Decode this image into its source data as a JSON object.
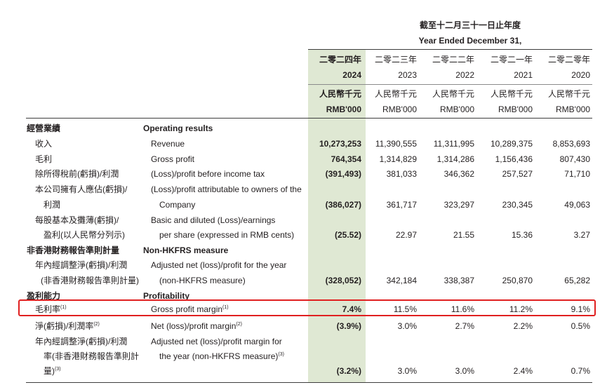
{
  "header": {
    "zh": "截至十二月三十一日止年度",
    "en": "Year Ended December 31,"
  },
  "columns": [
    {
      "zh_year": "二零二四年",
      "year": "2024",
      "unit_zh": "人民幣千元",
      "unit_en": "RMB'000"
    },
    {
      "zh_year": "二零二三年",
      "year": "2023",
      "unit_zh": "人民幣千元",
      "unit_en": "RMB'000"
    },
    {
      "zh_year": "二零二二年",
      "year": "2022",
      "unit_zh": "人民幣千元",
      "unit_en": "RMB'000"
    },
    {
      "zh_year": "二零二一年",
      "year": "2021",
      "unit_zh": "人民幣千元",
      "unit_en": "RMB'000"
    },
    {
      "zh_year": "二零二零年",
      "year": "2020",
      "unit_zh": "人民幣千元",
      "unit_en": "RMB'000"
    }
  ],
  "sections": {
    "operating": {
      "zh": "經營業績",
      "en": "Operating results"
    },
    "nonhkfrs": {
      "zh": "非香港財務報告準則計量",
      "en": "Non-HKFRS measure"
    },
    "profitability": {
      "zh": "盈利能力",
      "en": "Profitability"
    }
  },
  "rows": {
    "revenue": {
      "zh": "收入",
      "en": "Revenue",
      "values": [
        "10,273,253",
        "11,390,555",
        "11,311,995",
        "10,289,375",
        "8,853,693"
      ]
    },
    "gross_profit": {
      "zh": "毛利",
      "en": "Gross profit",
      "values": [
        "764,354",
        "1,314,829",
        "1,314,286",
        "1,156,436",
        "807,430"
      ]
    },
    "pbt": {
      "zh": "除所得稅前(虧損)/利潤",
      "en": "(Loss)/profit before income tax",
      "values": [
        "(391,493)",
        "381,033",
        "346,362",
        "257,527",
        "71,710"
      ]
    },
    "attributable": {
      "zh1": "本公司擁有人應佔(虧損)/",
      "zh2": "利潤",
      "en1": "(Loss)/profit attributable to owners of the",
      "en2": "Company",
      "values": [
        "(386,027)",
        "361,717",
        "323,297",
        "230,345",
        "49,063"
      ]
    },
    "eps": {
      "zh1": "每股基本及攤薄(虧損)/",
      "zh2": "盈利(以人民幣分列示)",
      "en1": "Basic and diluted (Loss)/earnings",
      "en2": "per share (expressed in RMB cents)",
      "values": [
        "(25.52)",
        "22.97",
        "21.55",
        "15.36",
        "3.27"
      ]
    },
    "adj_net": {
      "zh1": "年內經調整淨(虧損)/利潤",
      "zh2": "(非香港財務報告準則計量)",
      "en1": "Adjusted net (loss)/profit for the year",
      "en2": "(non-HKFRS measure)",
      "values": [
        "(328,052)",
        "342,184",
        "338,387",
        "250,870",
        "65,282"
      ]
    },
    "gpm": {
      "zh": "毛利率",
      "en": "Gross profit margin",
      "note": "(1)",
      "values": [
        "7.4%",
        "11.5%",
        "11.6%",
        "11.2%",
        "9.1%"
      ]
    },
    "npm": {
      "zh": "淨(虧損)/利潤率",
      "en": "Net (loss)/profit margin",
      "note": "(2)",
      "values": [
        "(3.9%)",
        "3.0%",
        "2.7%",
        "2.2%",
        "0.5%"
      ]
    },
    "adj_margin": {
      "zh1": "年內經調整淨(虧損)/利潤",
      "zh2": "率(非香港財務報告準則計",
      "zh3": "量)",
      "en1": "Adjusted net (loss)/profit margin for",
      "en2": "the year (non-HKFRS measure)",
      "note": "(3)",
      "values": [
        "(3.2%)",
        "3.0%",
        "3.0%",
        "2.4%",
        "0.7%"
      ]
    }
  },
  "colors": {
    "highlight_col": "#dfe8d3",
    "annotation_box": "#e02020"
  }
}
